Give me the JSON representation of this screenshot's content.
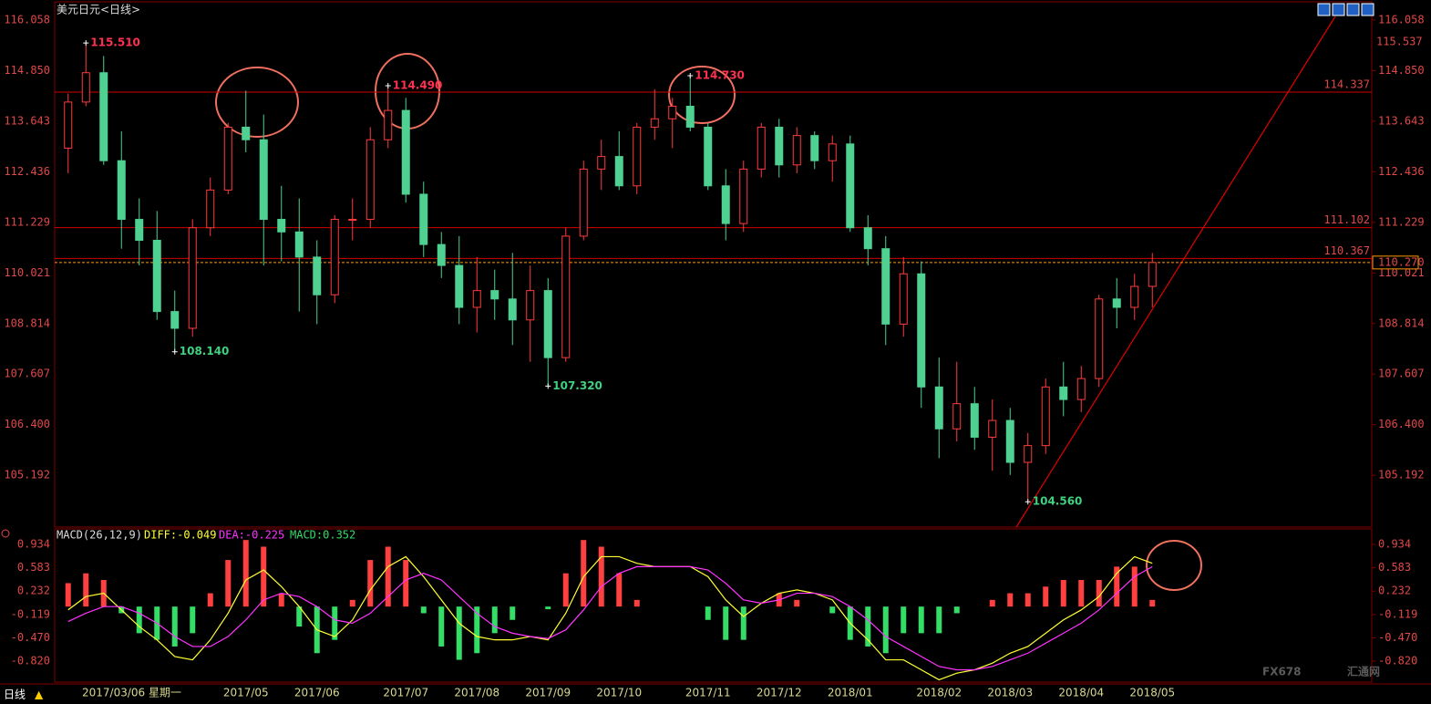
{
  "chart_data": [
    {
      "type": "candlestick",
      "title": "美元日元<日线>",
      "categories": [
        null,
        null,
        null,
        null,
        null,
        null,
        null,
        null,
        null,
        null,
        "2017/05",
        null,
        null,
        null,
        "2017/06",
        null,
        null,
        null,
        null,
        "2017/07",
        null,
        null,
        null,
        "2017/08",
        null,
        null,
        null,
        "2017/09",
        null,
        null,
        null,
        "2017/10",
        null,
        null,
        null,
        null,
        "2017/11",
        null,
        null,
        null,
        "2017/12",
        null,
        null,
        null,
        "2018/01",
        null,
        null,
        null,
        null,
        "2018/02",
        null,
        null,
        null,
        "2018/03",
        null,
        null,
        null,
        "2018/04",
        null,
        null,
        null,
        "2018/05"
      ],
      "open": [
        113.0,
        114.1,
        114.8,
        112.7,
        111.3,
        110.8,
        109.1,
        108.7,
        111.1,
        112.0,
        113.5,
        113.2,
        111.3,
        111.0,
        110.4,
        109.5,
        111.3,
        111.3,
        113.2,
        113.9,
        111.9,
        110.7,
        110.2,
        109.2,
        109.6,
        109.4,
        108.9,
        109.6,
        108.0,
        110.9,
        112.5,
        112.8,
        112.1,
        113.5,
        113.7,
        114.0,
        113.5,
        112.1,
        111.2,
        112.5,
        113.5,
        112.6,
        113.3,
        112.7,
        113.1,
        111.1,
        110.6,
        108.8,
        110.0,
        107.3,
        106.3,
        106.9,
        106.1,
        106.5,
        105.5,
        105.9,
        107.3,
        107.0,
        107.5,
        109.4,
        109.2,
        109.7
      ],
      "high": [
        114.3,
        115.51,
        115.2,
        113.4,
        111.8,
        111.5,
        109.6,
        111.3,
        112.3,
        113.6,
        114.37,
        113.8,
        112.1,
        111.8,
        110.8,
        111.4,
        111.8,
        113.5,
        114.49,
        114.2,
        112.2,
        111.0,
        110.9,
        110.4,
        110.1,
        110.5,
        110.2,
        109.9,
        111.1,
        112.7,
        113.2,
        113.4,
        113.6,
        114.4,
        114.2,
        114.73,
        113.6,
        112.5,
        112.7,
        113.6,
        113.7,
        113.5,
        113.4,
        113.3,
        113.3,
        111.4,
        110.9,
        110.4,
        110.3,
        108.0,
        107.9,
        107.3,
        107.0,
        106.8,
        106.2,
        107.5,
        107.9,
        107.8,
        109.5,
        109.9,
        110.0,
        110.5
      ],
      "low": [
        112.4,
        114.0,
        112.6,
        110.6,
        110.2,
        108.9,
        108.14,
        108.5,
        110.9,
        111.9,
        112.9,
        110.2,
        110.3,
        109.1,
        108.8,
        109.3,
        110.8,
        111.1,
        113.0,
        111.7,
        110.4,
        109.9,
        108.8,
        108.6,
        108.9,
        108.3,
        107.9,
        107.32,
        107.9,
        110.8,
        112.0,
        112.0,
        111.9,
        113.2,
        113.0,
        113.4,
        112.0,
        110.8,
        111.0,
        112.3,
        112.3,
        112.4,
        112.5,
        112.2,
        111.0,
        110.2,
        108.3,
        108.5,
        106.8,
        105.6,
        106.0,
        105.8,
        105.3,
        105.2,
        104.56,
        105.7,
        106.6,
        106.7,
        107.3,
        108.7,
        108.9,
        109.2
      ],
      "close": [
        114.1,
        114.8,
        112.7,
        111.3,
        110.8,
        109.1,
        108.7,
        111.1,
        112.0,
        113.5,
        113.2,
        111.3,
        111.0,
        110.4,
        109.5,
        111.3,
        111.3,
        113.2,
        113.9,
        111.9,
        110.7,
        110.2,
        109.2,
        109.6,
        109.4,
        108.9,
        109.6,
        108.0,
        110.9,
        112.5,
        112.8,
        112.1,
        113.5,
        113.7,
        114.0,
        113.5,
        112.1,
        111.2,
        112.5,
        113.5,
        112.6,
        113.3,
        112.7,
        113.1,
        111.1,
        110.6,
        108.8,
        110.0,
        107.3,
        106.3,
        106.9,
        106.1,
        106.5,
        105.5,
        105.9,
        107.3,
        107.0,
        107.5,
        109.4,
        109.2,
        109.7,
        110.27
      ],
      "high_labels": [
        null,
        "115.510",
        null,
        null,
        null,
        null,
        null,
        null,
        null,
        null,
        null,
        null,
        null,
        null,
        null,
        null,
        null,
        null,
        "114.490",
        null,
        null,
        null,
        null,
        null,
        null,
        null,
        null,
        null,
        null,
        null,
        null,
        null,
        null,
        null,
        null,
        "114.730",
        null,
        null,
        null,
        null,
        null,
        null,
        null,
        null,
        null,
        null,
        null,
        null,
        null,
        null,
        null,
        null,
        null,
        null,
        null,
        null,
        null,
        null,
        null,
        null,
        null,
        null
      ],
      "low_labels": [
        null,
        null,
        null,
        null,
        null,
        null,
        "108.140",
        null,
        null,
        null,
        null,
        null,
        null,
        null,
        null,
        null,
        null,
        null,
        null,
        null,
        null,
        null,
        null,
        null,
        null,
        null,
        null,
        "107.320",
        null,
        null,
        null,
        null,
        null,
        null,
        null,
        null,
        null,
        null,
        null,
        null,
        null,
        null,
        null,
        null,
        null,
        null,
        null,
        null,
        null,
        null,
        null,
        null,
        null,
        null,
        "104.560",
        null,
        null,
        null,
        null,
        null,
        null,
        null
      ],
      "up_color": "#ff3b3b",
      "down_color": "#4fd192",
      "ylim": [
        103.955,
        116.492
      ],
      "yticks": [
        116.058,
        {
          "value": 114.85,
          "label": "114.850"
        },
        113.643,
        112.436,
        111.229,
        110.021,
        108.814,
        107.607,
        {
          "value": 106.4,
          "label": "106.400"
        },
        105.192
      ],
      "levels": [
        114.337,
        111.102,
        110.367
      ],
      "last_price": {
        "value": 110.27,
        "label": "110.270"
      },
      "max_price": 115.537
    },
    {
      "type": "macd",
      "title": "MACD(26,12,9)",
      "series": [
        {
          "name": "DIFF:-0.049",
          "color": "#ffff33",
          "kind": "line",
          "values": [
            -0.049,
            0.15,
            0.2,
            -0.05,
            -0.3,
            -0.5,
            -0.75,
            -0.8,
            -0.5,
            -0.1,
            0.4,
            0.55,
            0.3,
            0.0,
            -0.35,
            -0.45,
            -0.2,
            0.25,
            0.6,
            0.75,
            0.45,
            0.1,
            -0.25,
            -0.45,
            -0.5,
            -0.5,
            -0.45,
            -0.5,
            -0.1,
            0.45,
            0.75,
            0.75,
            0.65,
            0.6,
            0.6,
            0.6,
            0.45,
            0.1,
            -0.15,
            0.05,
            0.2,
            0.25,
            0.2,
            0.1,
            -0.25,
            -0.5,
            -0.8,
            -0.8,
            -0.95,
            -1.1,
            -1.0,
            -0.95,
            -0.85,
            -0.7,
            -0.6,
            -0.4,
            -0.2,
            -0.05,
            0.15,
            0.5,
            0.75,
            0.65
          ]
        },
        {
          "name": "DEA:-0.225",
          "color": "#ff33ff",
          "kind": "line",
          "values": [
            -0.225,
            -0.1,
            0.0,
            0.0,
            -0.1,
            -0.25,
            -0.45,
            -0.6,
            -0.6,
            -0.45,
            -0.2,
            0.1,
            0.2,
            0.15,
            0.0,
            -0.2,
            -0.25,
            -0.1,
            0.15,
            0.4,
            0.5,
            0.4,
            0.15,
            -0.1,
            -0.3,
            -0.4,
            -0.45,
            -0.48,
            -0.35,
            -0.05,
            0.3,
            0.5,
            0.6,
            0.6,
            0.6,
            0.6,
            0.55,
            0.35,
            0.1,
            0.05,
            0.1,
            0.2,
            0.2,
            0.15,
            0.0,
            -0.2,
            -0.45,
            -0.6,
            -0.75,
            -0.9,
            -0.95,
            -0.95,
            -0.9,
            -0.8,
            -0.7,
            -0.55,
            -0.4,
            -0.25,
            -0.05,
            0.2,
            0.45,
            0.6
          ]
        },
        {
          "name": "MACD:0.352",
          "color": "#33dd66",
          "up_color": "#ff4040",
          "kind": "histogram",
          "values": [
            0.352,
            0.5,
            0.4,
            -0.1,
            -0.4,
            -0.5,
            -0.6,
            -0.4,
            0.2,
            0.7,
            1.0,
            0.9,
            0.2,
            -0.3,
            -0.7,
            -0.5,
            0.1,
            0.7,
            0.9,
            0.7,
            -0.1,
            -0.6,
            -0.8,
            -0.7,
            -0.4,
            -0.2,
            0.0,
            -0.04,
            0.5,
            1.0,
            0.9,
            0.5,
            0.1,
            0.0,
            0.0,
            0.0,
            -0.2,
            -0.5,
            -0.5,
            0.0,
            0.2,
            0.1,
            0.0,
            -0.1,
            -0.5,
            -0.6,
            -0.7,
            -0.4,
            -0.4,
            -0.4,
            -0.1,
            0.0,
            0.1,
            0.2,
            0.2,
            0.3,
            0.4,
            0.4,
            0.4,
            0.6,
            0.6,
            0.1
          ]
        }
      ],
      "ylim": [
        -1.135,
        1.167
      ],
      "yticks": [
        0.934,
        0.583,
        0.232,
        -0.119,
        {
          "value": -0.47,
          "label": "-0.470"
        },
        {
          "value": -0.82,
          "label": "-0.820"
        }
      ]
    }
  ],
  "footer": {
    "period": "日线",
    "cursor": "2017/03/06 星期一",
    "watermark": "FX678",
    "watermark_cn": "汇通网"
  }
}
